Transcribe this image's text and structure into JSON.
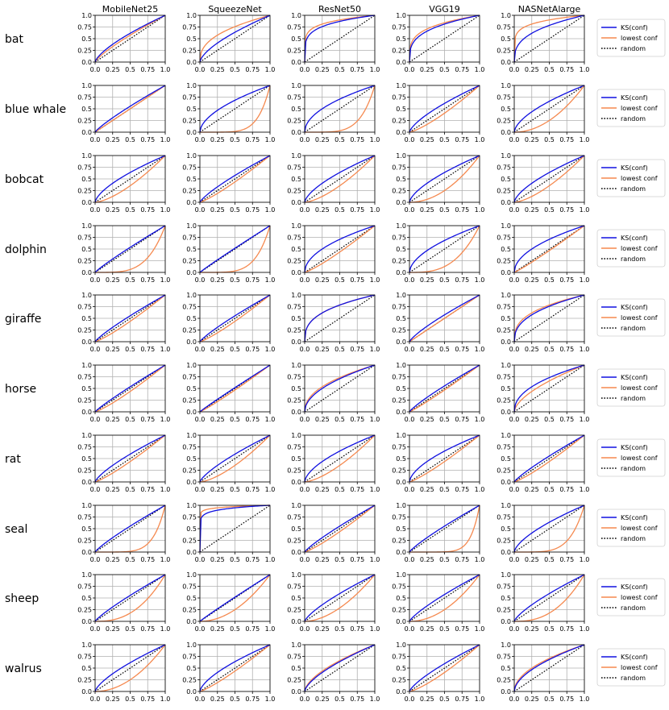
{
  "chart_data": {
    "type": "line",
    "models": [
      "MobileNet25",
      "SqueezeNet",
      "ResNet50",
      "VGG19",
      "NASNetAlarge"
    ],
    "classes": [
      "bat",
      "blue whale",
      "bobcat",
      "dolphin",
      "giraffe",
      "horse",
      "rat",
      "seal",
      "sheep",
      "walrus"
    ],
    "x_ticks": [
      "0.0",
      "0.25",
      "0.5",
      "0.75",
      "1.0"
    ],
    "y_ticks": [
      "0.0",
      "0.25",
      "0.5",
      "0.75",
      "1.0"
    ],
    "xlim": [
      0,
      1
    ],
    "ylim": [
      0,
      1
    ],
    "grid": true,
    "legend_position": "right",
    "legend": [
      {
        "label": "KS(conf)",
        "color": "#1010e0",
        "style": "solid"
      },
      {
        "label": "lowest conf",
        "color": "#f5894f",
        "style": "solid"
      },
      {
        "label": "random",
        "color": "#000000",
        "style": "dotted"
      }
    ],
    "legend_rows": [
      "bat",
      "blue whale",
      "bobcat",
      "dolphin",
      "giraffe",
      "horse",
      "rat",
      "seal",
      "sheep",
      "walrus"
    ],
    "curve_shape_note": "each curve is y = x^p; p < 1 bows above the diagonal, p > 1 bows below",
    "ks_conf_exponent": [
      [
        0.7,
        0.65,
        0.2,
        0.3,
        0.35
      ],
      [
        0.85,
        0.55,
        0.5,
        0.7,
        0.6
      ],
      [
        0.65,
        0.8,
        0.65,
        0.65,
        0.65
      ],
      [
        0.9,
        0.95,
        0.5,
        0.55,
        0.5
      ],
      [
        0.85,
        0.85,
        0.35,
        0.8,
        0.4
      ],
      [
        0.9,
        0.95,
        0.5,
        0.85,
        0.45
      ],
      [
        0.75,
        0.75,
        0.6,
        0.6,
        0.85
      ],
      [
        0.85,
        0.08,
        0.85,
        0.85,
        0.65
      ],
      [
        0.85,
        0.95,
        0.75,
        0.8,
        0.75
      ],
      [
        0.7,
        0.65,
        0.65,
        0.75,
        0.55
      ]
    ],
    "lowest_conf_exponent": [
      [
        0.8,
        0.4,
        0.15,
        0.25,
        0.15
      ],
      [
        1.0,
        6.0,
        5.0,
        1.3,
        2.0
      ],
      [
        1.5,
        1.2,
        1.5,
        2.0,
        1.5
      ],
      [
        4.0,
        5.0,
        1.2,
        3.0,
        1.1
      ],
      [
        1.2,
        1.2,
        0.35,
        1.0,
        0.35
      ],
      [
        1.2,
        1.1,
        0.45,
        1.1,
        0.6
      ],
      [
        1.2,
        1.5,
        1.5,
        1.2,
        1.2
      ],
      [
        6.0,
        0.04,
        1.2,
        8.0,
        5.0
      ],
      [
        2.5,
        2.0,
        1.8,
        2.0,
        2.5
      ],
      [
        2.0,
        1.2,
        0.6,
        1.3,
        0.5
      ]
    ]
  }
}
